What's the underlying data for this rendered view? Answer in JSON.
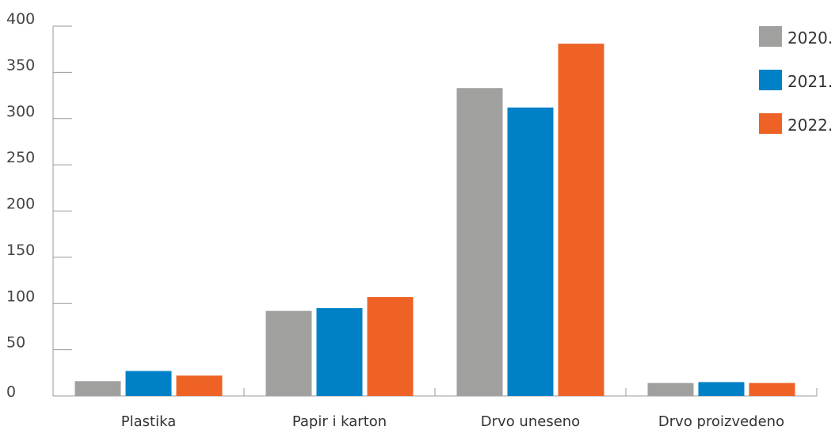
{
  "chart_data": {
    "type": "bar",
    "title": "",
    "xlabel": "",
    "ylabel": "",
    "categories": [
      "Plastika",
      "Papir i karton",
      "Drvo uneseno",
      "Drvo proizvedeno"
    ],
    "series": [
      {
        "name": "2020.",
        "color": "#a0a09f",
        "values": [
          16,
          92,
          333,
          14
        ]
      },
      {
        "name": "2021.",
        "color": "#0080c6",
        "values": [
          27,
          95,
          312,
          15
        ]
      },
      {
        "name": "2022.",
        "color": "#ee6226",
        "values": [
          22,
          107,
          381,
          14
        ]
      }
    ],
    "ylim": [
      0,
      400
    ],
    "yticks": [
      "0",
      "50",
      "100",
      "150",
      "200",
      "250",
      "300",
      "350",
      "400"
    ],
    "grid": false,
    "legend": "top-right"
  }
}
